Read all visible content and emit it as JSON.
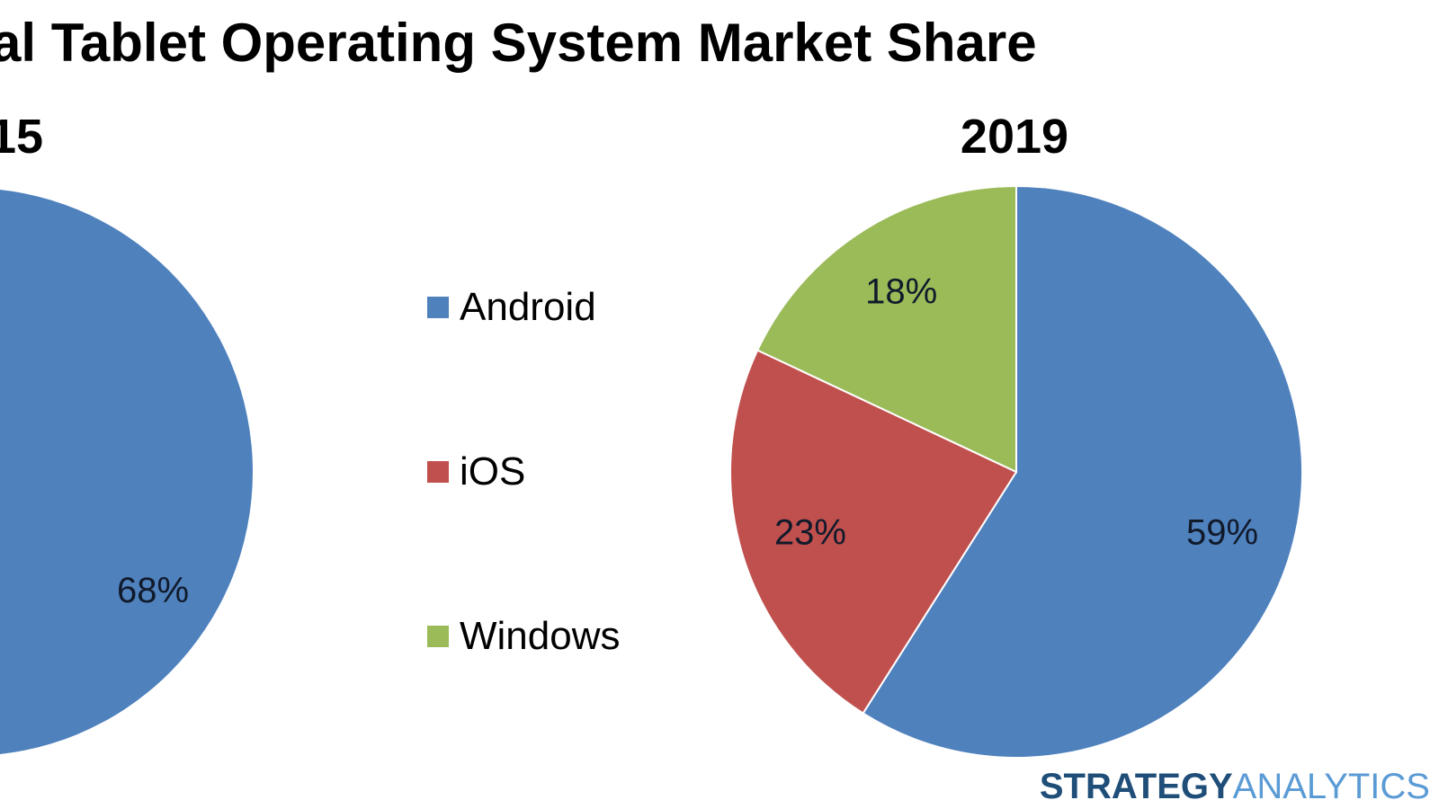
{
  "chart_data": {
    "type": "pie",
    "title": "al Tablet Operating System Market Share",
    "legend": {
      "placement": "center",
      "entries": [
        {
          "label": "Android",
          "color": "#4f81bd"
        },
        {
          "label": "iOS",
          "color": "#c0504d"
        },
        {
          "label": "Windows",
          "color": "#9bbb59"
        }
      ]
    },
    "pies": [
      {
        "year_label": "15",
        "partially_visible": true,
        "slices": [
          {
            "name": "Android",
            "value": 68,
            "label": "68%",
            "color": "#4f81bd"
          }
        ]
      },
      {
        "year_label": "2019",
        "partially_visible": false,
        "slices": [
          {
            "name": "Android",
            "value": 59,
            "label": "59%",
            "color": "#4f81bd"
          },
          {
            "name": "iOS",
            "value": 23,
            "label": "23%",
            "color": "#c0504d"
          },
          {
            "name": "Windows",
            "value": 18,
            "label": "18%",
            "color": "#9bbb59"
          }
        ]
      }
    ]
  },
  "branding": {
    "part1": "STRATEGY",
    "part2": "ANALYTICS",
    "color1": "#1f4e79",
    "color2": "#5b9bd5"
  }
}
